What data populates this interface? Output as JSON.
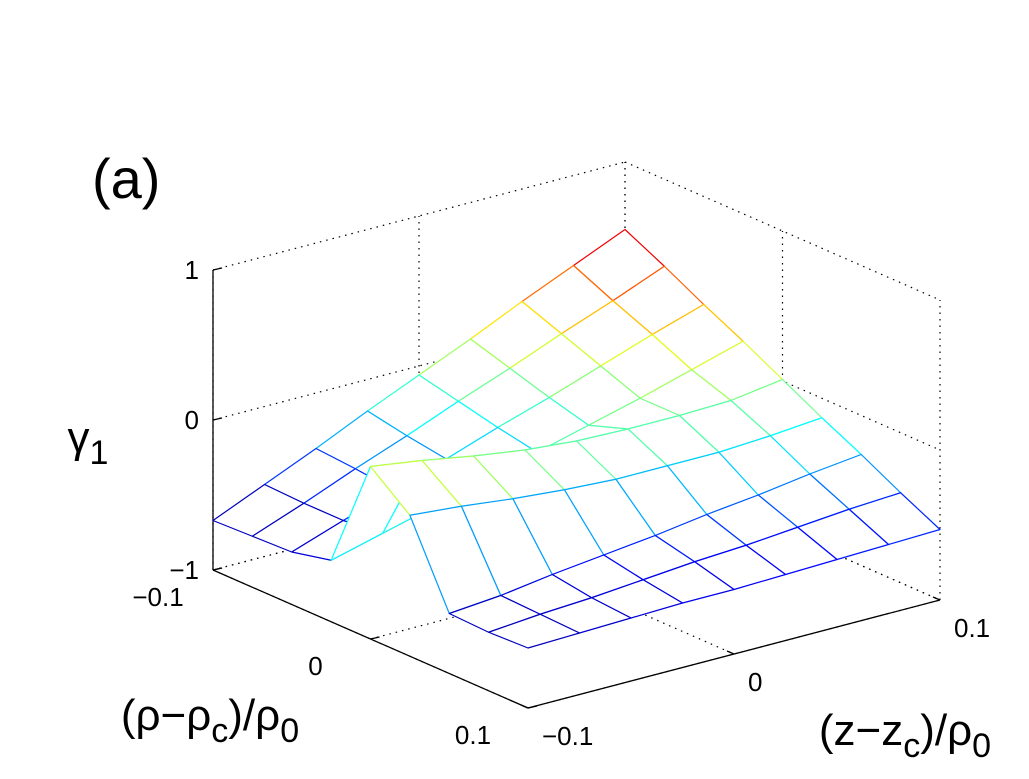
{
  "chart_data": {
    "type": "mesh",
    "panel_label": "(a)",
    "xlabel": [
      "(z−z",
      "c",
      ")/ρ",
      "0"
    ],
    "ylabel": [
      "(ρ−ρ",
      "c",
      ")/ρ",
      "0"
    ],
    "zlabel": [
      "γ",
      "1"
    ],
    "x": [
      -0.1,
      -0.075,
      -0.05,
      -0.025,
      0,
      0.025,
      0.05,
      0.075,
      0.1
    ],
    "y": [
      -0.1,
      -0.075,
      -0.05,
      -0.025,
      0,
      0.025,
      0.05,
      0.075,
      0.1
    ],
    "z": [
      [
        -0.67,
        -0.52,
        -0.37,
        -0.21,
        -0.06,
        0.09,
        0.25,
        0.4,
        0.55
      ],
      [
        -0.66,
        -0.53,
        -0.39,
        -0.26,
        -0.12,
        0.01,
        0.15,
        0.28,
        0.42
      ],
      [
        -0.65,
        -0.53,
        -0.42,
        -0.3,
        -0.18,
        -0.07,
        0.05,
        0.17,
        0.28
      ],
      [
        -0.59,
        -0.5,
        -0.41,
        -0.32,
        -0.23,
        -0.14,
        -0.05,
        0.05,
        0.15
      ],
      [
        0.15,
        0.1,
        0.04,
        -0.01,
        -0.04,
        -0.05,
        -0.05,
        -0.04,
        0.01
      ],
      [
        -0.06,
        -0.09,
        -0.13,
        -0.16,
        -0.18,
        -0.18,
        -0.18,
        -0.16,
        -0.13
      ],
      [
        -0.6,
        -0.57,
        -0.52,
        -0.48,
        -0.44,
        -0.39,
        -0.35,
        -0.3,
        -0.26
      ],
      [
        -0.61,
        -0.58,
        -0.56,
        -0.53,
        -0.5,
        -0.48,
        -0.45,
        -0.42,
        -0.4
      ],
      [
        -0.6,
        -0.59,
        -0.58,
        -0.57,
        -0.57,
        -0.56,
        -0.55,
        -0.54,
        -0.53
      ]
    ],
    "xlim": [
      -0.1,
      0.1
    ],
    "ylim": [
      -0.1,
      0.1
    ],
    "zlim": [
      -1,
      1
    ],
    "xticks": [
      {
        "value": -0.1,
        "label": "−0.1"
      },
      0,
      0.1
    ],
    "yticks": [
      {
        "value": -0.1,
        "label": "−0.1"
      },
      0,
      0.1
    ],
    "zticks": [
      {
        "value": -1,
        "label": "−1"
      },
      0,
      1
    ],
    "grid": true,
    "colormap": "jet"
  }
}
